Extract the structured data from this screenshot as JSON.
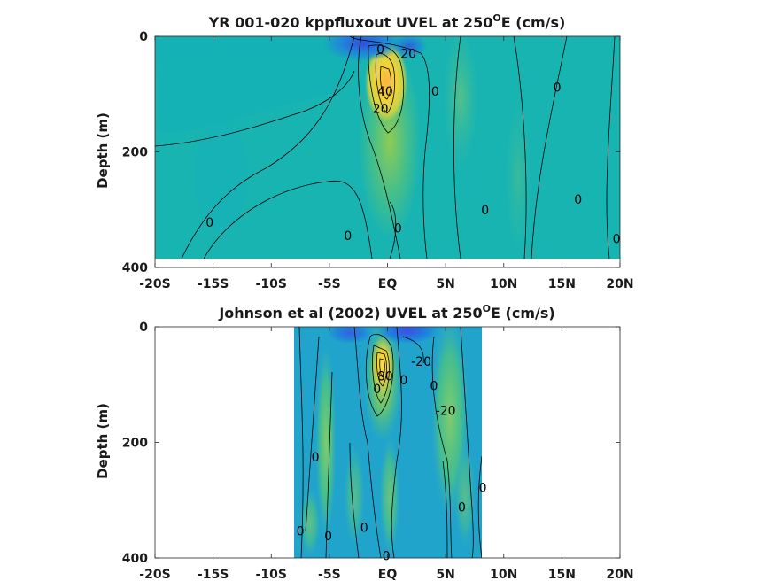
{
  "chart_data": [
    {
      "type": "heatmap",
      "title": "YR 001-020 kppfluxout UVEL at 250",
      "title_sup": "O",
      "title_tail": "E (cm/s)",
      "ylabel": "Depth (m)",
      "xlim": [
        -20,
        20
      ],
      "ylim": [
        400,
        0
      ],
      "x_ticks": [
        -20,
        -15,
        -10,
        -5,
        0,
        5,
        10,
        15,
        20
      ],
      "x_tick_labels": [
        "-20S",
        "-15S",
        "-10S",
        "-5S",
        "EQ",
        "5N",
        "10N",
        "15N",
        "20N"
      ],
      "y_ticks": [
        0,
        200,
        400
      ],
      "y_tick_labels": [
        "0",
        "200",
        "400"
      ],
      "data_extent": {
        "lat": [
          -20,
          20
        ],
        "depth": [
          0,
          385
        ]
      },
      "max_core": {
        "lat": 0.3,
        "depth": 75,
        "speed": 100
      },
      "contour_labels": [
        {
          "text": "0",
          "lat": -0.6,
          "depth": 22
        },
        {
          "text": "20",
          "lat": 1.8,
          "depth": 30
        },
        {
          "text": "40",
          "lat": -0.2,
          "depth": 95
        },
        {
          "text": "20",
          "lat": -0.6,
          "depth": 125
        },
        {
          "text": "0",
          "lat": 4.1,
          "depth": 95
        },
        {
          "text": "0",
          "lat": 14.6,
          "depth": 88
        },
        {
          "text": "0",
          "lat": -15.3,
          "depth": 322
        },
        {
          "text": "0",
          "lat": 8.4,
          "depth": 300
        },
        {
          "text": "0",
          "lat": 16.4,
          "depth": 282
        },
        {
          "text": "0",
          "lat": -3.4,
          "depth": 345
        },
        {
          "text": "0",
          "lat": 0.9,
          "depth": 332
        },
        {
          "text": "0",
          "lat": 19.7,
          "depth": 350
        }
      ]
    },
    {
      "type": "heatmap",
      "title": "Johnson et al (2002) UVEL at 250",
      "title_sup": "O",
      "title_tail": "E (cm/s)",
      "ylabel": "Depth (m)",
      "xlim": [
        -20,
        20
      ],
      "ylim": [
        400,
        0
      ],
      "x_ticks": [
        -20,
        -15,
        -10,
        -5,
        0,
        5,
        10,
        15,
        20
      ],
      "x_tick_labels": [
        "-20S",
        "-15S",
        "-10S",
        "-5S",
        "EQ",
        "5N",
        "10N",
        "15N",
        "20N"
      ],
      "y_ticks": [
        0,
        200,
        400
      ],
      "y_tick_labels": [
        "0",
        "200",
        "400"
      ],
      "data_extent": {
        "lat": [
          -8,
          8.2
        ],
        "depth": [
          0,
          400
        ]
      },
      "max_core": {
        "lat": -0.2,
        "depth": 70,
        "speed": 100
      },
      "contour_labels": [
        {
          "text": "80",
          "lat": -0.2,
          "depth": 85
        },
        {
          "text": "0",
          "lat": -0.9,
          "depth": 107
        },
        {
          "text": "0",
          "lat": 1.4,
          "depth": 92
        },
        {
          "text": "-20",
          "lat": 2.9,
          "depth": 60
        },
        {
          "text": "0",
          "lat": 4.0,
          "depth": 102
        },
        {
          "text": "-20",
          "lat": 5.0,
          "depth": 145
        },
        {
          "text": "0",
          "lat": -6.2,
          "depth": 225
        },
        {
          "text": "0",
          "lat": 8.2,
          "depth": 278
        },
        {
          "text": "0",
          "lat": 6.4,
          "depth": 312
        },
        {
          "text": "0",
          "lat": -7.5,
          "depth": 353
        },
        {
          "text": "0",
          "lat": -5.1,
          "depth": 362
        },
        {
          "text": "0",
          "lat": -2.0,
          "depth": 347
        },
        {
          "text": "0",
          "lat": -0.1,
          "depth": 396
        }
      ]
    }
  ]
}
